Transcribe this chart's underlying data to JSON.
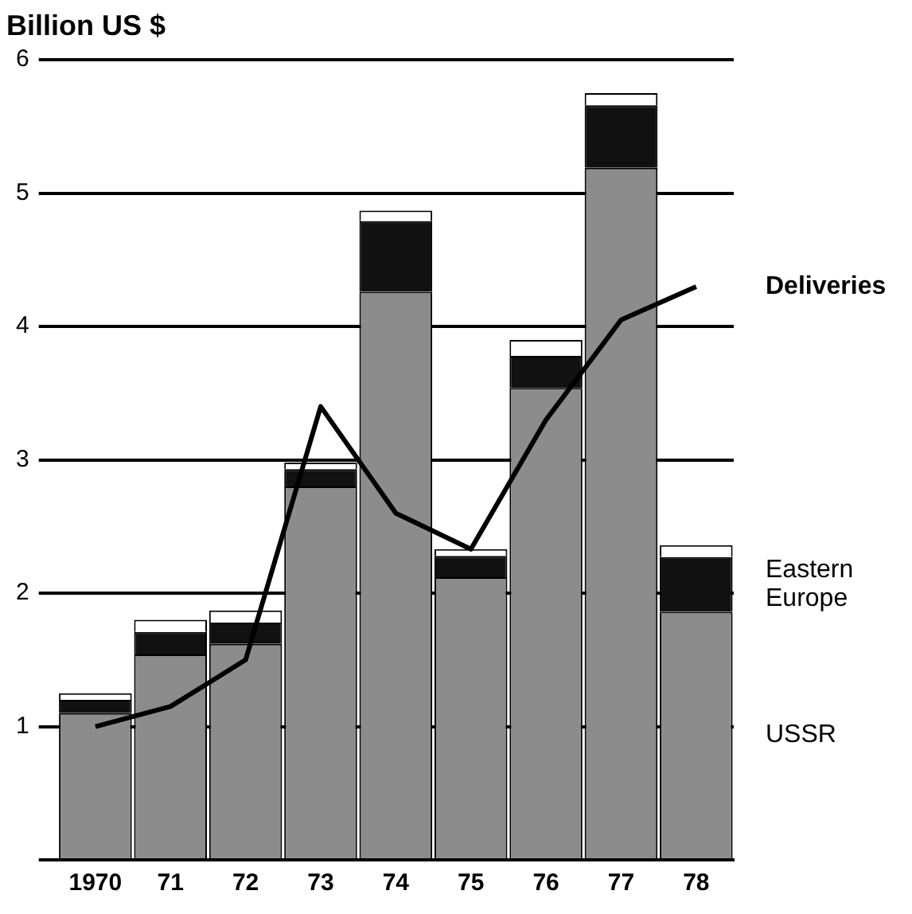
{
  "chart_data": {
    "type": "bar",
    "stacked": true,
    "ylabel": "Billion US $",
    "categories": [
      "1970",
      "71",
      "72",
      "73",
      "74",
      "75",
      "76",
      "77",
      "78"
    ],
    "series": [
      {
        "name": "USSR",
        "color": "#8c8c8c",
        "values": [
          1.1,
          1.54,
          1.62,
          2.8,
          4.26,
          2.12,
          3.54,
          5.19,
          1.86
        ]
      },
      {
        "name": "Eastern Europe",
        "color": "#111111",
        "values": [
          0.1,
          0.17,
          0.16,
          0.13,
          0.53,
          0.16,
          0.24,
          0.47,
          0.41
        ]
      },
      {
        "color": "#ffffff",
        "values": [
          0.05,
          0.09,
          0.09,
          0.05,
          0.08,
          0.05,
          0.12,
          0.09,
          0.09
        ]
      },
      {
        "type": "line",
        "name": "Deliveries",
        "color": "#000000",
        "values": [
          1.0,
          1.15,
          1.5,
          3.4,
          2.6,
          2.33,
          3.3,
          4.05,
          4.3
        ]
      }
    ],
    "ylim": [
      0,
      6
    ],
    "yticks": [
      {
        "value": 0,
        "label": null
      },
      1,
      2,
      3,
      4,
      5,
      6
    ],
    "grid": "y",
    "legend": false,
    "marker": "none"
  }
}
